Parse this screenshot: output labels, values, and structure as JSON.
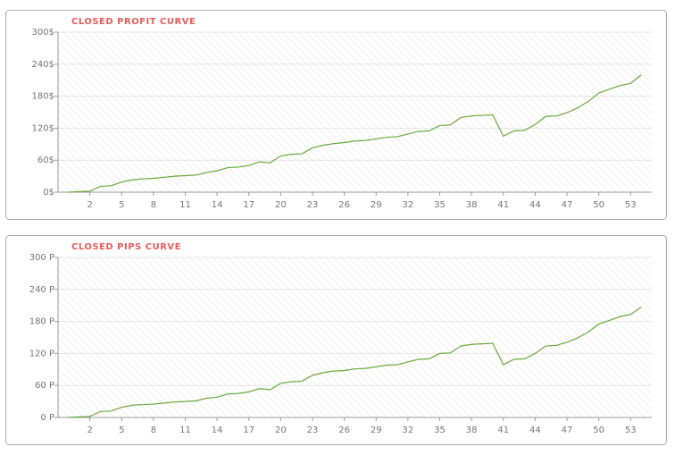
{
  "chart_data": [
    {
      "type": "line",
      "title": "CLOSED PROFIT CURVE",
      "x": [
        0,
        1,
        2,
        3,
        4,
        5,
        6,
        7,
        8,
        9,
        10,
        11,
        12,
        13,
        14,
        15,
        16,
        17,
        18,
        19,
        20,
        21,
        22,
        23,
        24,
        25,
        26,
        27,
        28,
        29,
        30,
        31,
        32,
        33,
        34,
        35,
        36,
        37,
        38,
        39,
        40,
        41,
        42,
        43,
        44,
        45,
        46,
        47,
        48,
        49,
        50,
        51,
        52,
        53,
        54
      ],
      "series": [
        {
          "color": "#6aaa3a",
          "values": [
            0,
            1,
            2,
            11,
            12,
            19,
            23,
            25,
            26,
            28,
            30,
            31,
            32,
            37,
            40,
            46,
            47,
            50,
            57,
            55,
            68,
            71,
            72,
            83,
            88,
            91,
            93,
            96,
            97,
            100,
            103,
            104,
            109,
            114,
            115,
            125,
            126,
            140,
            143,
            144,
            145,
            105,
            115,
            116,
            127,
            142,
            143,
            149,
            158,
            170,
            186,
            193,
            200,
            204,
            220
          ]
        }
      ],
      "xlim": [
        -1,
        55
      ],
      "xticks": [
        2,
        5,
        8,
        11,
        14,
        17,
        20,
        23,
        26,
        29,
        32,
        35,
        38,
        41,
        44,
        47,
        50,
        53
      ],
      "ylim": [
        0,
        300
      ],
      "yticks": [
        {
          "value": 0,
          "label": "0$"
        },
        {
          "value": 60,
          "label": "60$"
        },
        {
          "value": 120,
          "label": "120$"
        },
        {
          "value": 180,
          "label": "180$"
        },
        {
          "value": 240,
          "label": "240$"
        },
        {
          "value": 300,
          "label": "300$"
        }
      ]
    },
    {
      "type": "line",
      "title": "CLOSED PIPS CURVE",
      "x": [
        0,
        1,
        2,
        3,
        4,
        5,
        6,
        7,
        8,
        9,
        10,
        11,
        12,
        13,
        14,
        15,
        16,
        17,
        18,
        19,
        20,
        21,
        22,
        23,
        24,
        25,
        26,
        27,
        28,
        29,
        30,
        31,
        32,
        33,
        34,
        35,
        36,
        37,
        38,
        39,
        40,
        41,
        42,
        43,
        44,
        45,
        46,
        47,
        48,
        49,
        50,
        51,
        52,
        53,
        54
      ],
      "series": [
        {
          "color": "#6aaa3a",
          "values": [
            0,
            1,
            2,
            11,
            12,
            19,
            23,
            24,
            25,
            27,
            29,
            30,
            31,
            36,
            38,
            44,
            45,
            48,
            54,
            52,
            64,
            67,
            68,
            79,
            84,
            87,
            88,
            91,
            92,
            95,
            98,
            99,
            104,
            109,
            110,
            120,
            121,
            134,
            137,
            138,
            139,
            99,
            109,
            110,
            120,
            134,
            135,
            141,
            149,
            160,
            175,
            182,
            189,
            193,
            207
          ]
        }
      ],
      "xlim": [
        -1,
        55
      ],
      "xticks": [
        2,
        5,
        8,
        11,
        14,
        17,
        20,
        23,
        26,
        29,
        32,
        35,
        38,
        41,
        44,
        47,
        50,
        53
      ],
      "ylim": [
        0,
        300
      ],
      "yticks": [
        {
          "value": 0,
          "label": "0 P"
        },
        {
          "value": 60,
          "label": "60 P"
        },
        {
          "value": 120,
          "label": "120 P"
        },
        {
          "value": 180,
          "label": "180 P"
        },
        {
          "value": 240,
          "label": "240 P"
        },
        {
          "value": 300,
          "label": "300 P"
        }
      ]
    }
  ]
}
